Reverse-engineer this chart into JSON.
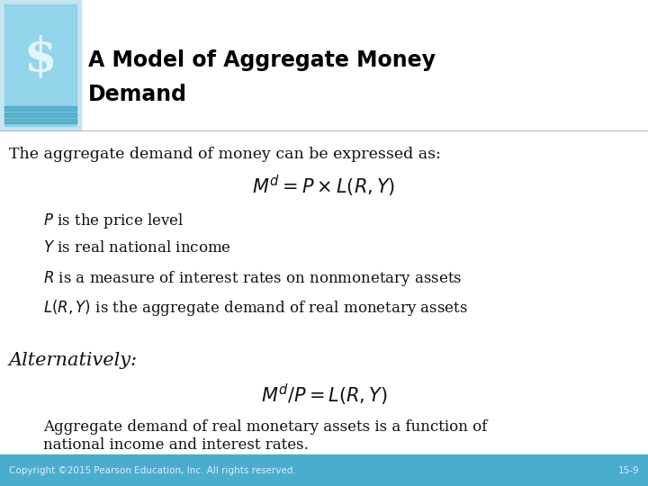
{
  "title_line1": "A Model of Aggregate Money",
  "title_line2": "Demand",
  "title_color": "#000000",
  "body_bg_color": "#ffffff",
  "footer_bg_color": "#4aadce",
  "footer_text": "Copyright ©2015 Pearson Education, Inc. All rights reserved.",
  "footer_page": "15-9",
  "footer_text_color": "#ddeeff",
  "intro_text": "The aggregate demand of money can be expressed as:",
  "formula1": "$M^d = P \\times L(R, Y)$",
  "bullet1": "$P$ is the price level",
  "bullet2": "$Y$ is real national income",
  "bullet3": "$R$ is a measure of interest rates on nonmonetary assets",
  "bullet4": "$L(R,Y)$ is the aggregate demand of real monetary assets",
  "alt_label": "Alternatively:",
  "formula2": "$M^d/P = L(R,Y)$",
  "alt_desc1": "Aggregate demand of real monetary assets is a function of",
  "alt_desc2": "national income and interest rates.",
  "header_icon_bg": "#7ecfe8",
  "header_light_bg": "#c5e4f0",
  "title_font_size": 17,
  "intro_font_size": 12.5,
  "formula_font_size": 15,
  "bullet_font_size": 12,
  "alt_label_font_size": 15,
  "footer_font_size": 7.5
}
